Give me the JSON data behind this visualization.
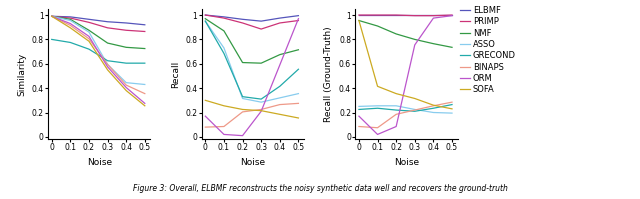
{
  "noise": [
    0,
    0.1,
    0.2,
    0.3,
    0.4,
    0.5
  ],
  "colors": {
    "ELBMF": "#5555bb",
    "PRIMP": "#cc3377",
    "NMF": "#339944",
    "ASSO": "#88ccee",
    "GRECOND": "#22aaaa",
    "BINAPS": "#ee9988",
    "ORM": "#bb55cc",
    "SOFA": "#ccaa22"
  },
  "similarity": {
    "ELBMF": [
      0.99,
      0.985,
      0.965,
      0.945,
      0.935,
      0.92
    ],
    "PRIMP": [
      0.99,
      0.975,
      0.94,
      0.895,
      0.875,
      0.865
    ],
    "NMF": [
      0.99,
      0.965,
      0.875,
      0.77,
      0.735,
      0.725
    ],
    "ASSO": [
      0.99,
      0.955,
      0.86,
      0.595,
      0.445,
      0.43
    ],
    "GRECOND": [
      0.8,
      0.775,
      0.72,
      0.625,
      0.605,
      0.605
    ],
    "BINAPS": [
      0.99,
      0.915,
      0.805,
      0.595,
      0.425,
      0.355
    ],
    "ORM": [
      0.99,
      0.93,
      0.825,
      0.575,
      0.405,
      0.275
    ],
    "SOFA": [
      0.99,
      0.895,
      0.785,
      0.55,
      0.38,
      0.255
    ]
  },
  "recall": {
    "ELBMF": [
      1.0,
      0.985,
      0.965,
      0.95,
      0.975,
      0.995
    ],
    "PRIMP": [
      1.0,
      0.975,
      0.935,
      0.885,
      0.935,
      0.955
    ],
    "NMF": [
      0.97,
      0.87,
      0.61,
      0.605,
      0.675,
      0.715
    ],
    "ASSO": [
      0.95,
      0.73,
      0.315,
      0.285,
      0.32,
      0.355
    ],
    "GRECOND": [
      0.95,
      0.685,
      0.33,
      0.31,
      0.415,
      0.555
    ],
    "BINAPS": [
      0.08,
      0.085,
      0.205,
      0.225,
      0.265,
      0.275
    ],
    "ORM": [
      0.17,
      0.02,
      0.01,
      0.21,
      0.59,
      0.97
    ],
    "SOFA": [
      0.3,
      0.255,
      0.225,
      0.215,
      0.185,
      0.155
    ]
  },
  "recall_gt": {
    "ELBMF": [
      1.0,
      1.0,
      1.0,
      1.0,
      1.0,
      1.0
    ],
    "PRIMP": [
      1.0,
      1.0,
      1.0,
      0.995,
      0.995,
      1.0
    ],
    "NMF": [
      0.955,
      0.91,
      0.845,
      0.8,
      0.765,
      0.735
    ],
    "ASSO": [
      0.25,
      0.255,
      0.255,
      0.225,
      0.2,
      0.195
    ],
    "GRECOND": [
      0.225,
      0.235,
      0.22,
      0.21,
      0.235,
      0.265
    ],
    "BINAPS": [
      0.085,
      0.075,
      0.185,
      0.22,
      0.255,
      0.285
    ],
    "ORM": [
      0.17,
      0.02,
      0.085,
      0.755,
      0.975,
      0.995
    ],
    "SOFA": [
      0.955,
      0.415,
      0.355,
      0.315,
      0.26,
      0.23
    ]
  },
  "legend_order": [
    "ELBMF",
    "PRIMP",
    "NMF",
    "ASSO",
    "GRECOND",
    "BINAPS",
    "ORM",
    "SOFA"
  ],
  "legend_labels": [
    "Elbmf",
    "Primp",
    "NMF",
    "Asso",
    "Grecond",
    "Binaps",
    "OrM",
    "Sofa"
  ],
  "ylabel_a": "Similarity",
  "ylabel_b": "Recall",
  "ylabel_c": "Recall (Ground-Truth)",
  "xlabel": "Noise",
  "caption": "Figure 3: Overall, ELBMF reconstructs the noisy synthetic data well and recovers the ground-truth"
}
